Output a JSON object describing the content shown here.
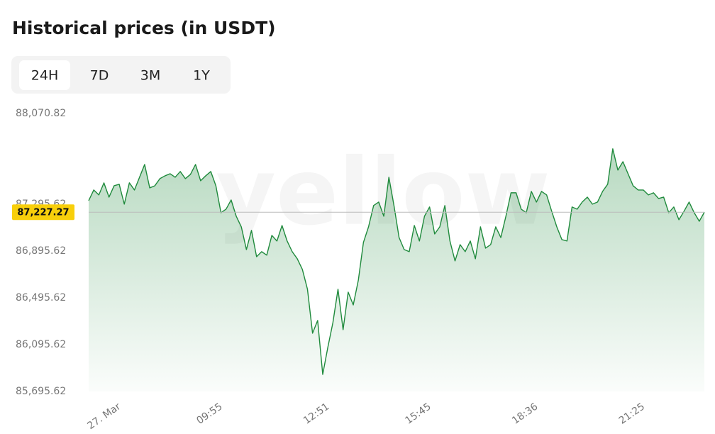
{
  "chart_data": {
    "type": "line",
    "title": "Historical prices (in USDT)",
    "tabs": [
      "24H",
      "7D",
      "3M",
      "1Y"
    ],
    "active_tab_index": 0,
    "watermark": "yellow",
    "color": "#1f8a3c",
    "current_price": {
      "value": 87227.27,
      "label": "87,227.27"
    },
    "ylim": [
      85695.62,
      88070.82
    ],
    "yticks": [
      {
        "value": 85695.62,
        "label": "85,695.62"
      },
      {
        "value": 86095.62,
        "label": "86,095.62"
      },
      {
        "value": 86495.62,
        "label": "86,495.62"
      },
      {
        "value": 86895.62,
        "label": "86,895.62"
      },
      {
        "value": 87295.62,
        "label": "87,295.62"
      },
      {
        "value": 88070.82,
        "label": "88,070.82"
      }
    ],
    "categories": [
      null,
      null,
      null,
      "27. Mar",
      null,
      null,
      null,
      null,
      null,
      null,
      null,
      null,
      null,
      null,
      null,
      null,
      null,
      null,
      null,
      null,
      null,
      null,
      null,
      "09:55",
      null,
      null,
      null,
      null,
      null,
      null,
      null,
      null,
      null,
      null,
      null,
      null,
      null,
      null,
      null,
      null,
      null,
      null,
      null,
      null,
      "12:51",
      null,
      null,
      null,
      null,
      null,
      null,
      null,
      null,
      null,
      null,
      null,
      null,
      null,
      null,
      null,
      null,
      null,
      null,
      null,
      "15:45",
      null,
      null,
      null,
      null,
      null,
      null,
      null,
      null,
      null,
      null,
      null,
      null,
      null,
      null,
      null,
      null,
      null,
      null,
      null,
      null,
      "18:36",
      null,
      null,
      null,
      null,
      null,
      null,
      null,
      null,
      null,
      null,
      null,
      null,
      null,
      null,
      null,
      null,
      null,
      null,
      null,
      null,
      "21:25",
      null,
      null,
      null,
      null,
      null,
      null,
      null,
      null,
      null,
      null,
      null,
      null,
      null,
      null,
      null
    ],
    "values": [
      87326,
      87417,
      87375,
      87478,
      87356,
      87453,
      87466,
      87296,
      87478,
      87417,
      87526,
      87635,
      87435,
      87453,
      87514,
      87538,
      87556,
      87526,
      87575,
      87514,
      87550,
      87635,
      87496,
      87538,
      87575,
      87453,
      87223,
      87253,
      87332,
      87193,
      87102,
      86908,
      87072,
      86847,
      86890,
      86860,
      87029,
      86981,
      87114,
      86981,
      86890,
      86829,
      86738,
      86569,
      86193,
      86302,
      85841,
      86072,
      86284,
      86569,
      86223,
      86544,
      86435,
      86647,
      86969,
      87102,
      87284,
      87314,
      87193,
      87526,
      87284,
      87011,
      86908,
      86890,
      87114,
      86981,
      87193,
      87272,
      87041,
      87102,
      87284,
      86981,
      86811,
      86950,
      86890,
      86981,
      86829,
      87102,
      86920,
      86950,
      87102,
      87011,
      87193,
      87393,
      87393,
      87253,
      87223,
      87405,
      87314,
      87405,
      87375,
      87235,
      87102,
      86993,
      86981,
      87272,
      87253,
      87314,
      87356,
      87296,
      87314,
      87405,
      87466,
      87769,
      87587,
      87659,
      87556,
      87453,
      87417,
      87417,
      87375,
      87393,
      87344,
      87356,
      87223,
      87272,
      87163,
      87235,
      87314,
      87223,
      87150,
      87227.27
    ]
  }
}
